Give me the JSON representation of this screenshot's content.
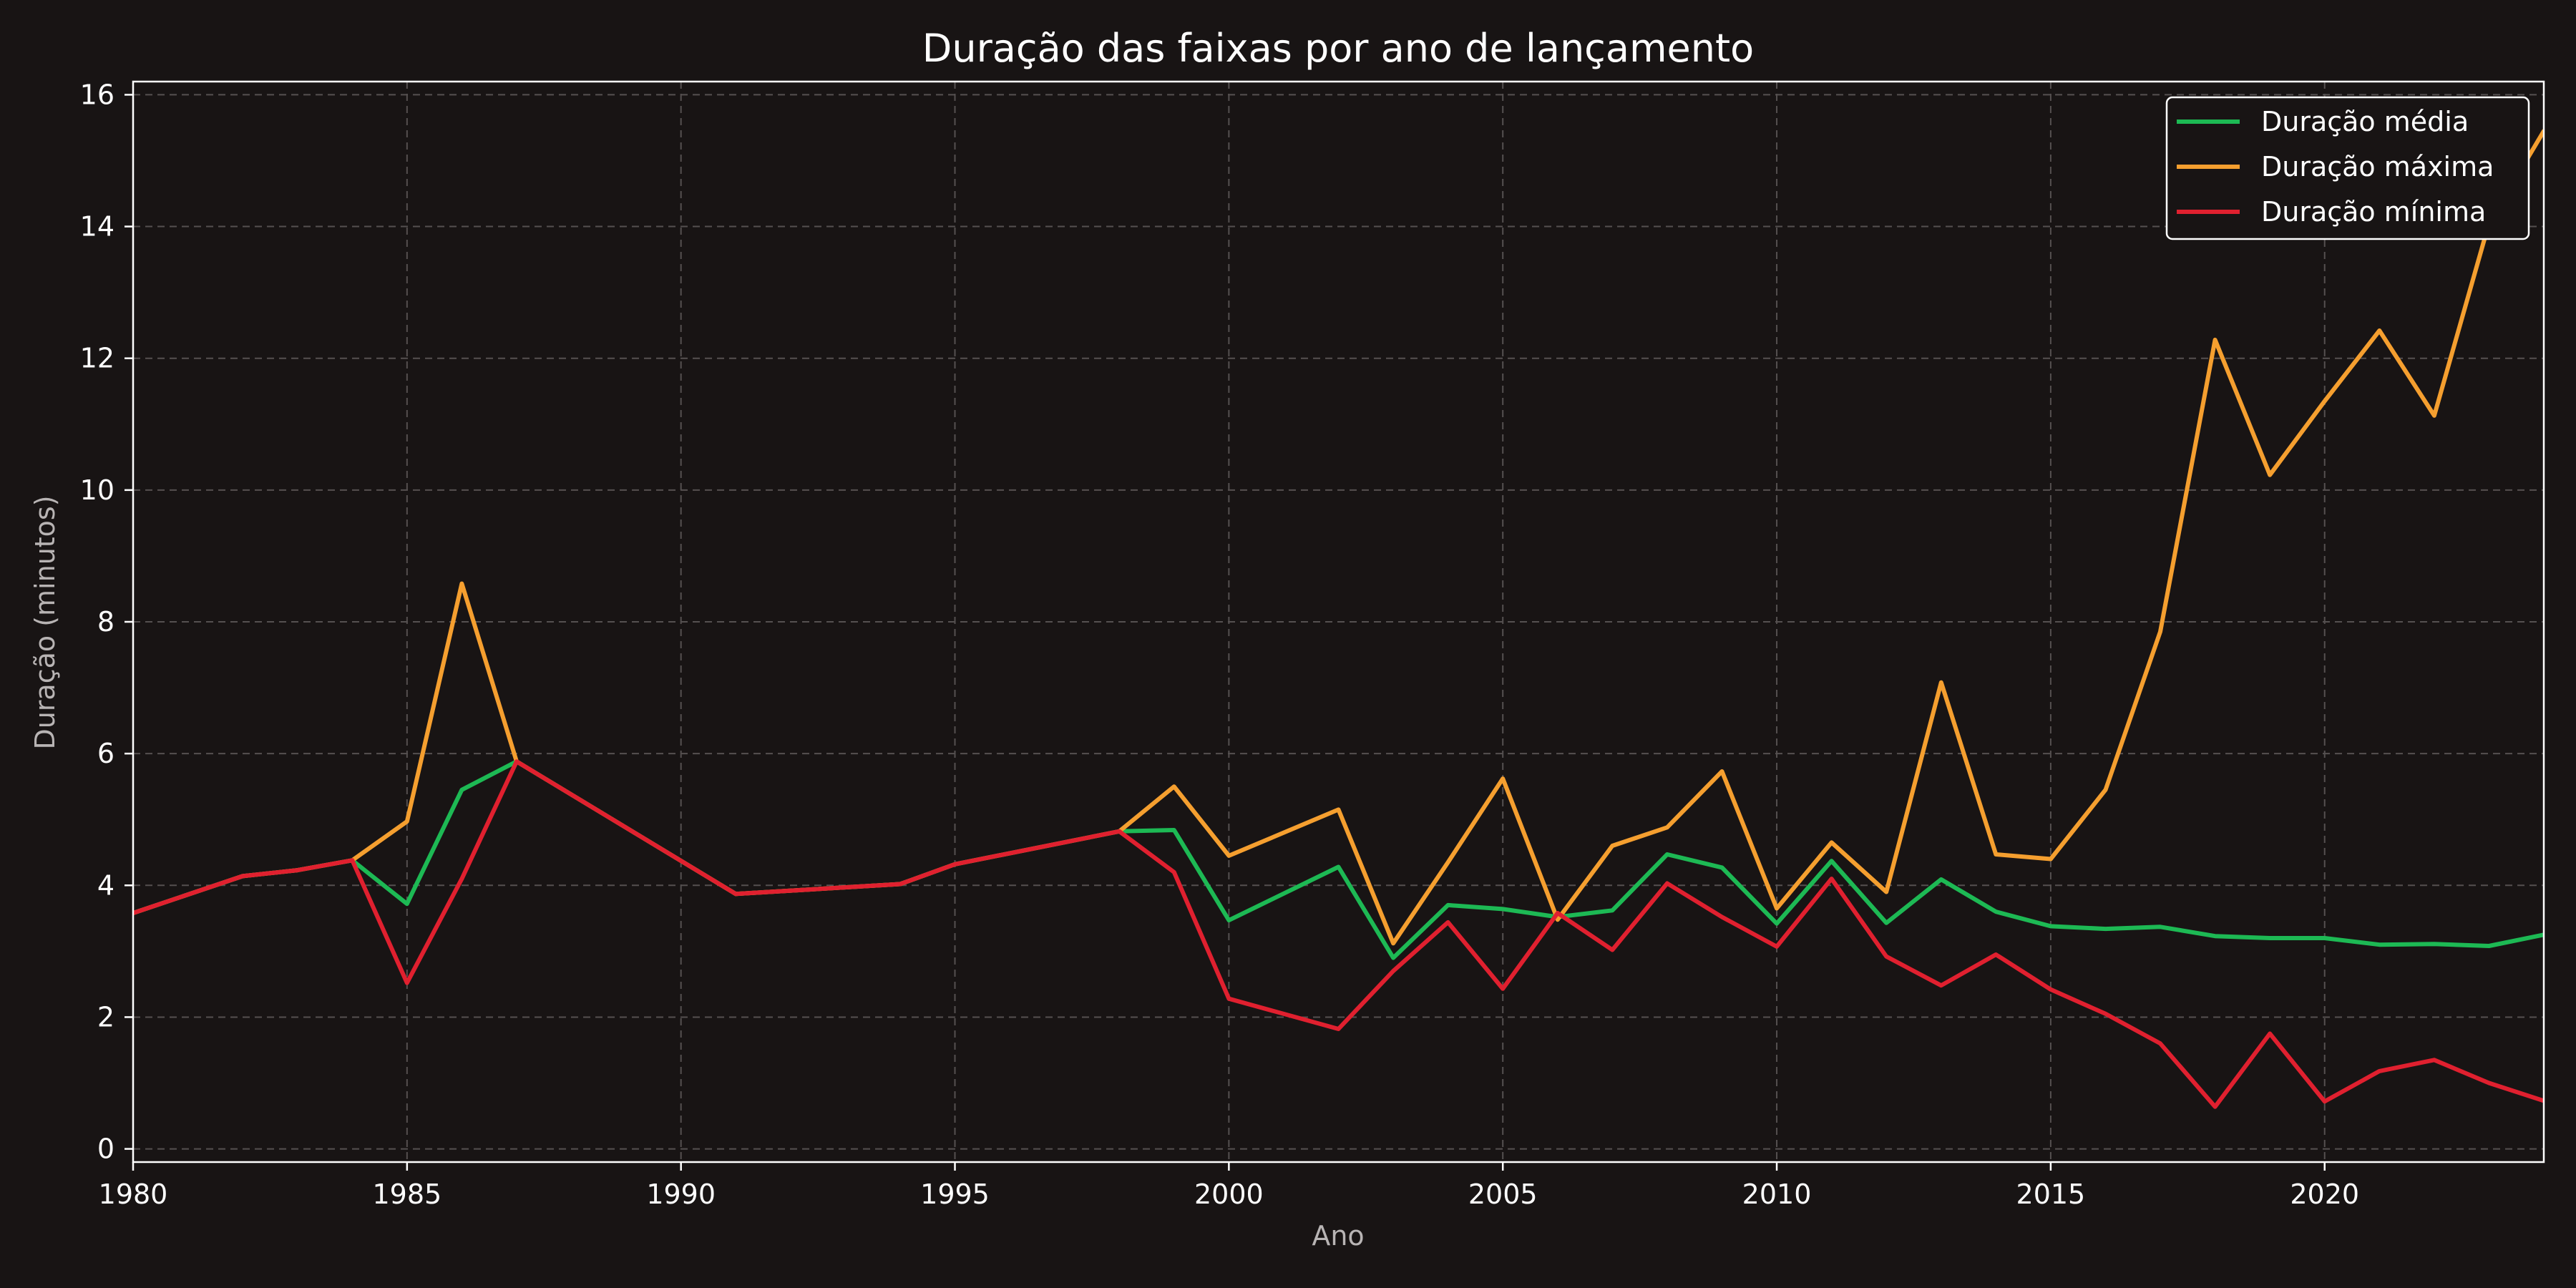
{
  "chart_data": {
    "type": "line",
    "title": "Duração das faixas por ano de lançamento",
    "xlabel": "Ano",
    "ylabel": "Duração (minutos)",
    "xlim": [
      1980,
      2024
    ],
    "ylim": [
      -0.2,
      16.2
    ],
    "xticks": [
      1980,
      1985,
      1990,
      1995,
      2000,
      2005,
      2010,
      2015,
      2020
    ],
    "yticks": [
      0,
      2,
      4,
      6,
      8,
      10,
      12,
      14,
      16
    ],
    "grid": true,
    "legend_position": "top-right",
    "series": [
      {
        "name": "Duração média",
        "color": "#1db954",
        "points": [
          [
            1980,
            3.58
          ],
          [
            1982,
            4.14
          ],
          [
            1983,
            4.23
          ],
          [
            1984,
            4.38
          ],
          [
            1985,
            3.72
          ],
          [
            1986,
            5.45
          ],
          [
            1987,
            5.88
          ],
          [
            1991,
            3.87
          ],
          [
            1994,
            4.02
          ],
          [
            1995,
            4.32
          ],
          [
            1998,
            4.82
          ],
          [
            1999,
            4.84
          ],
          [
            2000,
            3.47
          ],
          [
            2002,
            4.28
          ],
          [
            2003,
            2.9
          ],
          [
            2004,
            3.7
          ],
          [
            2005,
            3.64
          ],
          [
            2006,
            3.52
          ],
          [
            2007,
            3.62
          ],
          [
            2008,
            4.47
          ],
          [
            2009,
            4.27
          ],
          [
            2010,
            3.42
          ],
          [
            2011,
            4.37
          ],
          [
            2012,
            3.43
          ],
          [
            2013,
            4.09
          ],
          [
            2014,
            3.6
          ],
          [
            2015,
            3.38
          ],
          [
            2016,
            3.34
          ],
          [
            2017,
            3.37
          ],
          [
            2018,
            3.23
          ],
          [
            2019,
            3.2
          ],
          [
            2020,
            3.2
          ],
          [
            2021,
            3.1
          ],
          [
            2022,
            3.11
          ],
          [
            2023,
            3.08
          ],
          [
            2024,
            3.25
          ]
        ]
      },
      {
        "name": "Duração máxima",
        "color": "#f59f2f",
        "points": [
          [
            1980,
            3.58
          ],
          [
            1982,
            4.14
          ],
          [
            1983,
            4.23
          ],
          [
            1984,
            4.38
          ],
          [
            1985,
            4.97
          ],
          [
            1986,
            8.58
          ],
          [
            1987,
            5.88
          ],
          [
            1991,
            3.87
          ],
          [
            1994,
            4.02
          ],
          [
            1995,
            4.32
          ],
          [
            1998,
            4.82
          ],
          [
            1999,
            5.5
          ],
          [
            2000,
            4.45
          ],
          [
            2002,
            5.15
          ],
          [
            2003,
            3.12
          ],
          [
            2004,
            4.35
          ],
          [
            2005,
            5.62
          ],
          [
            2006,
            3.48
          ],
          [
            2007,
            4.6
          ],
          [
            2008,
            4.88
          ],
          [
            2009,
            5.73
          ],
          [
            2010,
            3.65
          ],
          [
            2011,
            4.65
          ],
          [
            2012,
            3.9
          ],
          [
            2013,
            7.08
          ],
          [
            2014,
            4.47
          ],
          [
            2015,
            4.4
          ],
          [
            2016,
            5.45
          ],
          [
            2017,
            7.85
          ],
          [
            2018,
            12.28
          ],
          [
            2019,
            10.23
          ],
          [
            2020,
            11.35
          ],
          [
            2021,
            12.42
          ],
          [
            2022,
            11.13
          ],
          [
            2023,
            14.05
          ],
          [
            2024,
            15.45
          ]
        ]
      },
      {
        "name": "Duração mínima",
        "color": "#e0202f",
        "points": [
          [
            1980,
            3.58
          ],
          [
            1982,
            4.14
          ],
          [
            1983,
            4.23
          ],
          [
            1984,
            4.38
          ],
          [
            1985,
            2.52
          ],
          [
            1986,
            4.1
          ],
          [
            1987,
            5.88
          ],
          [
            1991,
            3.87
          ],
          [
            1994,
            4.02
          ],
          [
            1995,
            4.32
          ],
          [
            1998,
            4.82
          ],
          [
            1999,
            4.2
          ],
          [
            2000,
            2.28
          ],
          [
            2002,
            1.82
          ],
          [
            2003,
            2.7
          ],
          [
            2004,
            3.44
          ],
          [
            2005,
            2.43
          ],
          [
            2006,
            3.58
          ],
          [
            2007,
            3.02
          ],
          [
            2008,
            4.03
          ],
          [
            2009,
            3.52
          ],
          [
            2010,
            3.07
          ],
          [
            2011,
            4.1
          ],
          [
            2012,
            2.92
          ],
          [
            2013,
            2.48
          ],
          [
            2014,
            2.95
          ],
          [
            2015,
            2.42
          ],
          [
            2016,
            2.05
          ],
          [
            2017,
            1.6
          ],
          [
            2018,
            0.64
          ],
          [
            2019,
            1.75
          ],
          [
            2020,
            0.72
          ],
          [
            2021,
            1.18
          ],
          [
            2022,
            1.35
          ],
          [
            2023,
            1.0
          ],
          [
            2024,
            0.73
          ]
        ]
      }
    ]
  },
  "legend": {
    "frame_color": "#ffffff",
    "background": "#181414"
  },
  "colors": {
    "background": "#181414",
    "axes": "#ffffff",
    "grid": "#555050"
  }
}
